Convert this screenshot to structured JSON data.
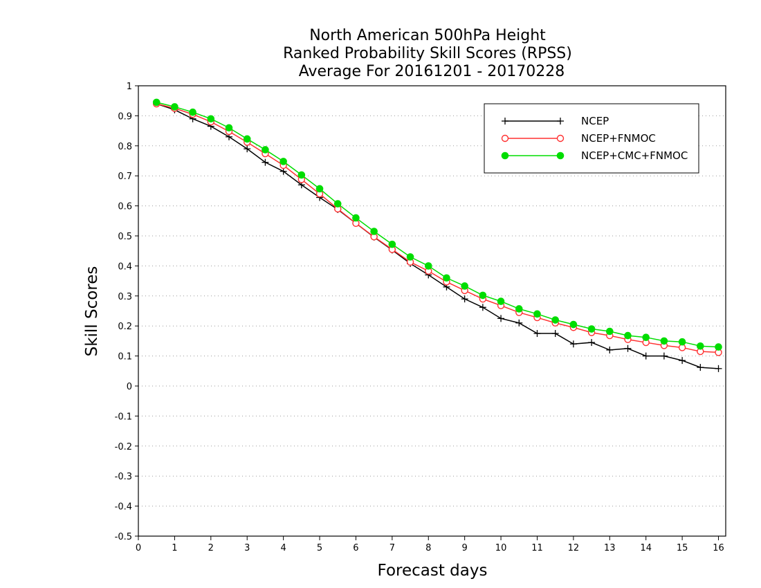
{
  "chart_data": {
    "type": "line",
    "title_lines": [
      "North American 500hPa Height",
      "Ranked Probability Skill Scores (RPSS)",
      "Average For 20161201 - 20170228"
    ],
    "xlabel": "Forecast days",
    "ylabel": "Skill Scores",
    "xlim": [
      0,
      16.2
    ],
    "ylim": [
      -0.5,
      1
    ],
    "xticks": [
      0,
      1,
      2,
      3,
      4,
      5,
      6,
      7,
      8,
      9,
      10,
      11,
      12,
      13,
      14,
      15,
      16
    ],
    "yticks": [
      -0.5,
      -0.4,
      -0.3,
      -0.2,
      -0.1,
      0,
      0.1,
      0.2,
      0.3,
      0.4,
      0.5,
      0.6,
      0.7,
      0.8,
      0.9,
      1
    ],
    "ytick_labels": [
      "-0.5",
      "-0.4",
      "-0.3",
      "-0.2",
      "-0.1",
      "0",
      "0.1",
      "0.2",
      "0.3",
      "0.4",
      "0.5",
      "0.6",
      "0.7",
      "0.8",
      "0.9",
      "1"
    ],
    "grid": "horizontal-dotted",
    "legend_position": "top-right",
    "x": [
      0.5,
      1,
      1.5,
      2,
      2.5,
      3,
      3.5,
      4,
      4.5,
      5,
      5.5,
      6,
      6.5,
      7,
      7.5,
      8,
      8.5,
      9,
      9.5,
      10,
      10.5,
      11,
      11.5,
      12,
      12.5,
      13,
      13.5,
      14,
      14.5,
      15,
      15.5,
      16
    ],
    "series": [
      {
        "name": "NCEP",
        "color": "#000000",
        "marker": "plus",
        "values": [
          0.94,
          0.92,
          0.89,
          0.865,
          0.83,
          0.79,
          0.745,
          0.715,
          0.67,
          0.628,
          0.588,
          0.542,
          0.496,
          0.453,
          0.408,
          0.37,
          0.33,
          0.29,
          0.262,
          0.225,
          0.21,
          0.175,
          0.175,
          0.14,
          0.145,
          0.12,
          0.125,
          0.1,
          0.1,
          0.085,
          0.062,
          0.058
        ]
      },
      {
        "name": "NCEP+FNMOC",
        "color": "#ff3030",
        "marker": "open-circle",
        "values": [
          0.94,
          0.925,
          0.905,
          0.88,
          0.848,
          0.812,
          0.774,
          0.735,
          0.688,
          0.64,
          0.59,
          0.542,
          0.497,
          0.455,
          0.413,
          0.383,
          0.347,
          0.318,
          0.29,
          0.268,
          0.245,
          0.228,
          0.21,
          0.195,
          0.178,
          0.168,
          0.155,
          0.145,
          0.135,
          0.128,
          0.115,
          0.112
        ]
      },
      {
        "name": "NCEP+CMC+FNMOC",
        "color": "#00dd00",
        "marker": "filled-circle",
        "values": [
          0.945,
          0.93,
          0.912,
          0.89,
          0.86,
          0.823,
          0.787,
          0.748,
          0.703,
          0.657,
          0.607,
          0.56,
          0.515,
          0.472,
          0.43,
          0.4,
          0.36,
          0.333,
          0.302,
          0.282,
          0.257,
          0.24,
          0.22,
          0.205,
          0.19,
          0.182,
          0.168,
          0.162,
          0.15,
          0.147,
          0.133,
          0.13
        ]
      }
    ]
  }
}
